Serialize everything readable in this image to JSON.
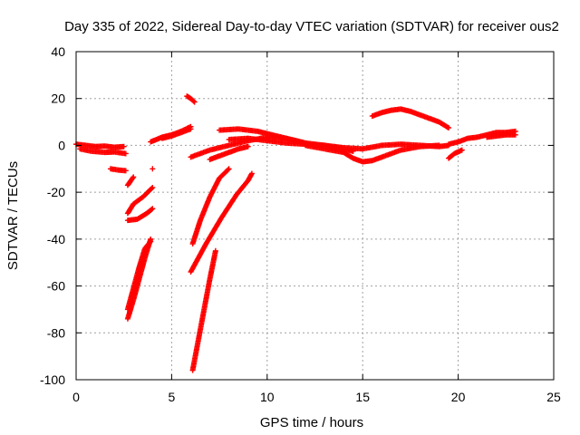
{
  "chart_data": {
    "type": "scatter",
    "title": "Day 335 of 2022, Sidereal Day-to-day VTEC variation (SDTVAR) for receiver ous2",
    "xlabel": "GPS time / hours",
    "ylabel": "SDTVAR / TECUs",
    "xlim": [
      0,
      25
    ],
    "ylim": [
      -100,
      40
    ],
    "xticks": [
      0,
      5,
      10,
      15,
      20,
      25
    ],
    "yticks": [
      -100,
      -80,
      -60,
      -40,
      -20,
      0,
      20,
      40
    ],
    "grid": true,
    "marker": "plus",
    "color": "#ff0000",
    "series": [
      {
        "x": [
          0.0,
          0.5,
          1.0,
          1.5,
          2.0,
          2.5
        ],
        "y": [
          0.5,
          0.0,
          -0.5,
          -0.3,
          -0.8,
          -0.5
        ]
      },
      {
        "x": [
          0.2,
          0.8,
          1.5,
          2.0,
          2.6
        ],
        "y": [
          -1.5,
          -2.5,
          -3.0,
          -2.8,
          -3.5
        ]
      },
      {
        "x": [
          1.8,
          2.2,
          2.6
        ],
        "y": [
          -10.0,
          -10.5,
          -10.8
        ]
      },
      {
        "x": [
          2.7,
          3.0
        ],
        "y": [
          -17.0,
          -13.5
        ]
      },
      {
        "x": [
          4.0
        ],
        "y": [
          -10.0
        ]
      },
      {
        "x": [
          2.7,
          3.0,
          3.5,
          4.0
        ],
        "y": [
          -29.0,
          -25.0,
          -22.0,
          -18.0
        ]
      },
      {
        "x": [
          2.7,
          3.2,
          3.7,
          4.0
        ],
        "y": [
          -32.0,
          -31.5,
          -29.0,
          -27.0
        ]
      },
      {
        "x": [
          2.7,
          3.0,
          3.3,
          3.6,
          3.9
        ],
        "y": [
          -74.0,
          -66.0,
          -57.0,
          -48.0,
          -40.0
        ]
      },
      {
        "x": [
          2.7,
          3.0,
          3.3,
          3.6,
          3.9
        ],
        "y": [
          -70.0,
          -61.0,
          -52.0,
          -44.0,
          -41.0
        ]
      },
      {
        "x": [
          3.9,
          4.5,
          5.0,
          5.5,
          6.0
        ],
        "y": [
          1.5,
          3.5,
          4.5,
          6.0,
          8.0
        ]
      },
      {
        "x": [
          4.5,
          5.0,
          5.5,
          6.0
        ],
        "y": [
          3.0,
          4.0,
          5.5,
          7.0
        ]
      },
      {
        "x": [
          5.8,
          6.0,
          6.2
        ],
        "y": [
          21.0,
          20.0,
          18.5
        ]
      },
      {
        "x": [
          6.1,
          6.4,
          6.7,
          7.0,
          7.3
        ],
        "y": [
          -96.0,
          -83.0,
          -70.0,
          -57.0,
          -45.0
        ]
      },
      {
        "x": [
          6.1,
          6.5,
          7.0,
          7.5,
          8.0
        ],
        "y": [
          -42.0,
          -32.0,
          -22.0,
          -14.0,
          -10.0
        ]
      },
      {
        "x": [
          6.0,
          6.8,
          7.6,
          8.4,
          9.0,
          9.2
        ],
        "y": [
          -54.0,
          -42.0,
          -31.0,
          -21.0,
          -15.0,
          -12.0
        ]
      },
      {
        "x": [
          6.0,
          7.0,
          8.0,
          9.0,
          10.0,
          11.0,
          12.0,
          13.0,
          14.0,
          15.0,
          16.0,
          17.0,
          18.0,
          19.0,
          19.5
        ],
        "y": [
          -5.0,
          -2.0,
          0.0,
          2.0,
          3.5,
          3.0,
          1.0,
          0.0,
          -1.0,
          -1.5,
          0.0,
          0.5,
          0.0,
          -0.5,
          0.0
        ]
      },
      {
        "x": [
          7.0,
          7.5,
          8.0,
          8.5,
          9.0
        ],
        "y": [
          -6.0,
          -4.5,
          -3.0,
          -1.5,
          -0.5
        ]
      },
      {
        "x": [
          7.5,
          8.5,
          9.5,
          10.0,
          10.5,
          11.0,
          11.5,
          12.0
        ],
        "y": [
          6.5,
          7.0,
          6.0,
          5.0,
          4.0,
          3.0,
          2.0,
          1.0
        ]
      },
      {
        "x": [
          8.0,
          9.0,
          10.0,
          11.0,
          12.0,
          13.0,
          14.0,
          14.5
        ],
        "y": [
          2.5,
          3.0,
          2.0,
          1.0,
          0.5,
          0.0,
          -1.5,
          -2.5
        ]
      },
      {
        "x": [
          12.0,
          13.0,
          14.0,
          14.5,
          15.0,
          15.5,
          16.0,
          17.0,
          18.0,
          19.0
        ],
        "y": [
          0.0,
          -1.5,
          -3.0,
          -5.5,
          -7.0,
          -6.5,
          -5.0,
          -2.0,
          -0.5,
          0.0
        ]
      },
      {
        "x": [
          15.5,
          16.0,
          16.5,
          17.0,
          17.5,
          18.0,
          18.5,
          19.0,
          19.5
        ],
        "y": [
          12.5,
          14.0,
          15.0,
          15.5,
          14.5,
          13.0,
          11.5,
          10.0,
          7.5
        ]
      },
      {
        "x": [
          19.5,
          19.8,
          20.2
        ],
        "y": [
          -5.5,
          -3.5,
          -2.0
        ]
      },
      {
        "x": [
          19.5,
          20.0,
          20.5,
          21.0,
          21.5,
          22.0,
          22.5,
          23.0
        ],
        "y": [
          0.5,
          1.5,
          3.0,
          3.5,
          4.5,
          5.5,
          5.5,
          6.0
        ]
      },
      {
        "x": [
          21.5,
          22.0,
          22.5,
          23.0
        ],
        "y": [
          3.5,
          4.0,
          4.5,
          4.5
        ]
      }
    ]
  }
}
